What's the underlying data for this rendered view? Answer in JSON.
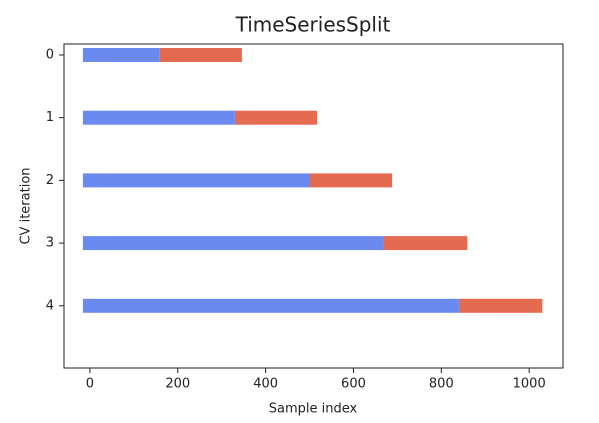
{
  "chart_data": {
    "type": "bar",
    "orientation": "horizontal",
    "title": "TimeSeriesSplit",
    "x_label": "Sample index",
    "y_label": "CV iteration",
    "categories": [
      "0",
      "1",
      "2",
      "3",
      "4"
    ],
    "series": [
      {
        "color": "#6a8aef",
        "values": [
          [
            -16,
            159
          ],
          [
            -16,
            330
          ],
          [
            -16,
            501
          ],
          [
            -16,
            667
          ],
          [
            -16,
            840
          ]
        ]
      },
      {
        "color": "#e46a50",
        "values": [
          [
            159,
            346
          ],
          [
            330,
            517
          ],
          [
            501,
            688
          ],
          [
            667,
            859
          ],
          [
            840,
            1030
          ]
        ]
      }
    ],
    "xlim": [
      -59,
      1077
    ],
    "xticks": [
      0,
      200,
      400,
      600,
      800,
      1000
    ]
  }
}
